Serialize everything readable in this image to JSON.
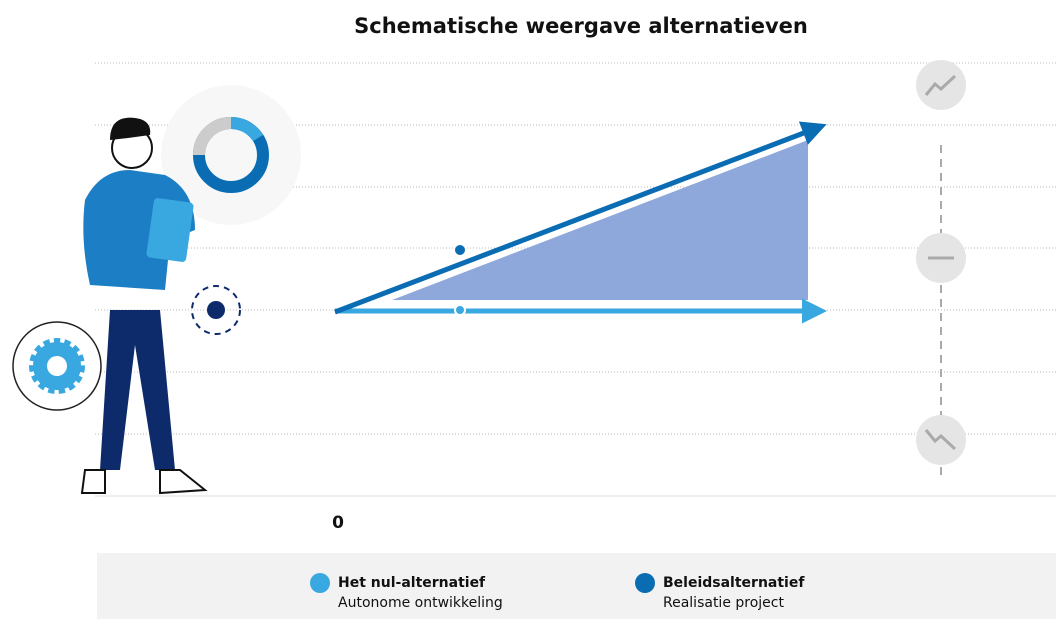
{
  "title": "Schematische weergave alternatieven",
  "axis": {
    "origin_label": "0"
  },
  "legend": [
    {
      "name": "Het nul-alternatief",
      "description": "Autonome ontwikkeling",
      "color": "#3aa8e0"
    },
    {
      "name": "Beleidsalternatief",
      "description": "Realisatie project",
      "color": "#0a6db3"
    }
  ]
}
